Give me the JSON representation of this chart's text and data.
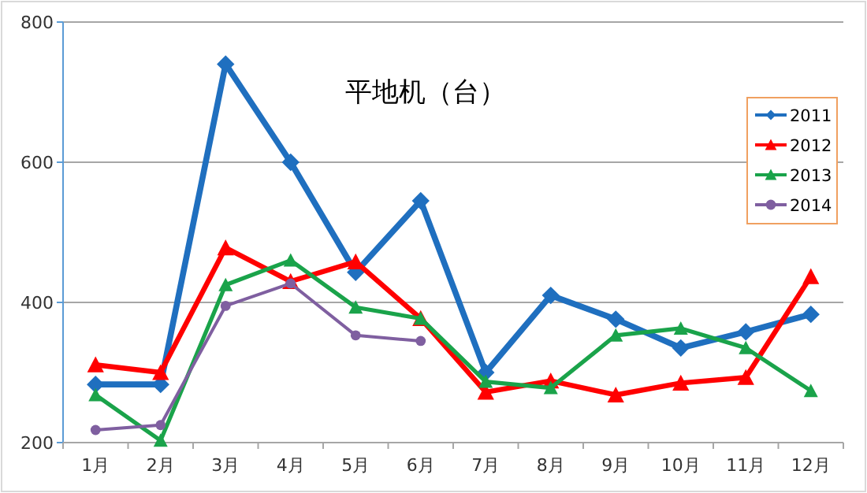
{
  "chart_data": {
    "type": "line",
    "title": "平地机（台）",
    "categories": [
      "1月",
      "2月",
      "3月",
      "4月",
      "5月",
      "6月",
      "7月",
      "8月",
      "9月",
      "10月",
      "11月",
      "12月"
    ],
    "series": [
      {
        "name": "2011",
        "color": "#1f6fbf",
        "marker": "diamond",
        "values": [
          283,
          283,
          740,
          600,
          443,
          545,
          300,
          410,
          376,
          335,
          358,
          383
        ]
      },
      {
        "name": "2012",
        "color": "#ff0000",
        "marker": "triangle",
        "values": [
          311,
          300,
          478,
          430,
          458,
          377,
          272,
          288,
          268,
          285,
          293,
          437
        ]
      },
      {
        "name": "2013",
        "color": "#1aa34a",
        "marker": "triangle",
        "values": [
          268,
          203,
          425,
          460,
          393,
          377,
          287,
          278,
          353,
          363,
          335,
          274
        ]
      },
      {
        "name": "2014",
        "color": "#7f5fa0",
        "marker": "circle",
        "values": [
          218,
          225,
          395,
          427,
          353,
          345,
          null,
          null,
          null,
          null,
          null,
          null
        ]
      }
    ],
    "ylim": [
      200,
      800
    ],
    "yticks": [
      200,
      400,
      600,
      800
    ],
    "grid": "y",
    "legend": "top right"
  }
}
